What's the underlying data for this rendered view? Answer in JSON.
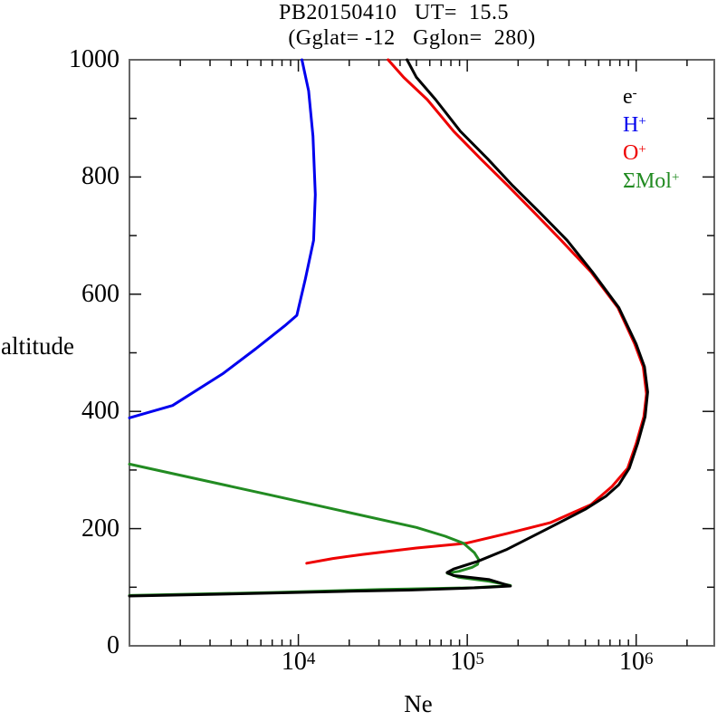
{
  "title": {
    "line1": "PB20150410   UT=  15.5",
    "line2": "(Gglat= -12   Gglon=  280)"
  },
  "chart_data": {
    "type": "line",
    "title": "PB20150410 UT= 15.5 (Gglat= -12 Gglon= 280)",
    "xlabel": "Ne",
    "ylabel": "altitude",
    "x_scale": "log",
    "xlim": [
      1000,
      2900000
    ],
    "ylim": [
      0,
      1000
    ],
    "grid": false,
    "legend_position": "upper right inside",
    "x_major_ticks": [
      {
        "value": 10000,
        "base": "10",
        "exp": "4"
      },
      {
        "value": 100000,
        "base": "10",
        "exp": "5"
      },
      {
        "value": 1000000,
        "base": "10",
        "exp": "6"
      }
    ],
    "x_minor_tick_rule": "2-9 per decade plus 2e6",
    "y_major_ticks": [
      0,
      200,
      400,
      600,
      800,
      1000
    ],
    "y_minor_step": 100,
    "frame_color": "#666666",
    "tick_color": "#111111",
    "series": [
      {
        "name": "O+",
        "label_base": "O",
        "label_sup": "+",
        "color": "#ee0000",
        "points": [
          [
            11200,
            141
          ],
          [
            16000,
            149
          ],
          [
            24000,
            156
          ],
          [
            50000,
            167
          ],
          [
            98000,
            175
          ],
          [
            174000,
            192
          ],
          [
            310000,
            210
          ],
          [
            540000,
            241
          ],
          [
            720000,
            272
          ],
          [
            890000,
            303
          ],
          [
            1000000,
            345
          ],
          [
            1110000,
            391
          ],
          [
            1150000,
            430
          ],
          [
            1100000,
            476
          ],
          [
            980000,
            515
          ],
          [
            780000,
            577
          ],
          [
            540000,
            638
          ],
          [
            360000,
            692
          ],
          [
            250000,
            739
          ],
          [
            174000,
            785
          ],
          [
            120000,
            831
          ],
          [
            83000,
            878
          ],
          [
            58000,
            932
          ],
          [
            42000,
            970
          ],
          [
            34000,
            1000
          ]
        ]
      },
      {
        "name": "Sigma-Mol+",
        "label_base": "ΣMol",
        "label_sup": "+",
        "color": "#228b22",
        "points": [
          [
            1000,
            310
          ],
          [
            6900,
            257
          ],
          [
            50000,
            202
          ],
          [
            74000,
            187
          ],
          [
            95000,
            175
          ],
          [
            110000,
            159
          ],
          [
            117000,
            147
          ],
          [
            115000,
            139
          ],
          [
            107000,
            134
          ],
          [
            89000,
            127
          ],
          [
            76000,
            124
          ],
          [
            89000,
            117
          ],
          [
            135000,
            110
          ],
          [
            180000,
            103
          ],
          [
            110000,
            99
          ],
          [
            30000,
            96
          ],
          [
            7000,
            91
          ],
          [
            1000,
            86
          ]
        ]
      },
      {
        "name": "H+",
        "label_base": "H",
        "label_sup": "+",
        "color": "#0000ee",
        "points": [
          [
            1000,
            389
          ],
          [
            1800,
            410
          ],
          [
            3600,
            465
          ],
          [
            5600,
            507
          ],
          [
            8300,
            546
          ],
          [
            9800,
            564
          ],
          [
            11000,
            626
          ],
          [
            12300,
            692
          ],
          [
            12600,
            770
          ],
          [
            12200,
            870
          ],
          [
            11500,
            947
          ],
          [
            10500,
            1000
          ]
        ]
      },
      {
        "name": "e-",
        "label_base": "e",
        "label_sup": "-",
        "color": "#000000",
        "points": [
          [
            1000,
            85
          ],
          [
            3200,
            88
          ],
          [
            6900,
            90
          ],
          [
            20000,
            93
          ],
          [
            45000,
            95
          ],
          [
            90000,
            98
          ],
          [
            135000,
            100
          ],
          [
            180000,
            102
          ],
          [
            135000,
            113
          ],
          [
            83000,
            120
          ],
          [
            76000,
            125
          ],
          [
            83000,
            131
          ],
          [
            115000,
            144
          ],
          [
            170000,
            164
          ],
          [
            290000,
            198
          ],
          [
            500000,
            233
          ],
          [
            660000,
            255
          ],
          [
            790000,
            275
          ],
          [
            910000,
            303
          ],
          [
            1020000,
            345
          ],
          [
            1130000,
            391
          ],
          [
            1170000,
            433
          ],
          [
            1120000,
            476
          ],
          [
            1000000,
            515
          ],
          [
            790000,
            577
          ],
          [
            550000,
            638
          ],
          [
            390000,
            692
          ],
          [
            270000,
            739
          ],
          [
            186000,
            785
          ],
          [
            132000,
            831
          ],
          [
            91000,
            878
          ],
          [
            65000,
            932
          ],
          [
            50000,
            970
          ],
          [
            44000,
            1000
          ]
        ]
      }
    ],
    "legend_order": [
      "e-",
      "H+",
      "O+",
      "Sigma-Mol+"
    ]
  }
}
